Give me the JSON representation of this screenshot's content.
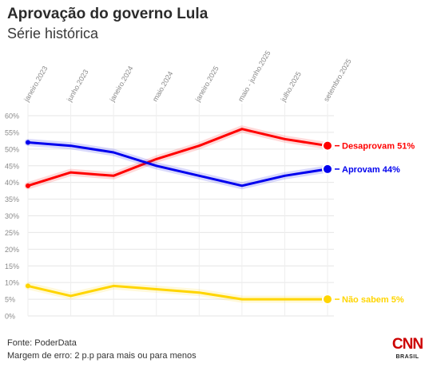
{
  "header": {
    "title": "Aprovação do governo Lula",
    "subtitle": "Série histórica"
  },
  "footer": {
    "source": "Fonte: PoderData",
    "margin": "Margem de erro: 2 p.p para mais ou para menos"
  },
  "logo": {
    "brand": "CNN",
    "sub": "BRASIL"
  },
  "chart_data": {
    "type": "line",
    "title": "Aprovação do governo Lula",
    "subtitle": "Série histórica",
    "x": [
      "janeiro.2023",
      "junho.2023",
      "janeiro.2024",
      "maio.2024",
      "janeiro.2025",
      "maio - junho.2025",
      "julho.2025",
      "setembro.2025"
    ],
    "x_ticks": [
      "janeiro.2023",
      "junho.2023",
      "janeiro.2024",
      "maio.2024",
      "janeiro.2025",
      "maio - junho.2025",
      "julho.2025",
      "setembro.2025"
    ],
    "y_ticks": [
      "0%",
      "5%",
      "10%",
      "15%",
      "20%",
      "25%",
      "30%",
      "35%",
      "40%",
      "45%",
      "50%",
      "55%",
      "60%"
    ],
    "ylim": [
      0,
      60
    ],
    "grid": true,
    "series": [
      {
        "name": "Desaprovam",
        "color": "#ff0000",
        "values": [
          39,
          43,
          42,
          47,
          51,
          56,
          53,
          51
        ],
        "end_label": "Desaprovam 51%"
      },
      {
        "name": "Aprovam",
        "color": "#0000ee",
        "values": [
          52,
          51,
          49,
          45,
          42,
          39,
          42,
          44
        ],
        "end_label": "Aprovam 44%"
      },
      {
        "name": "Não sabem",
        "color": "#ffd500",
        "values": [
          9,
          6,
          9,
          8,
          7,
          5,
          5,
          5
        ],
        "end_label": "Não sabem 5%"
      }
    ]
  }
}
